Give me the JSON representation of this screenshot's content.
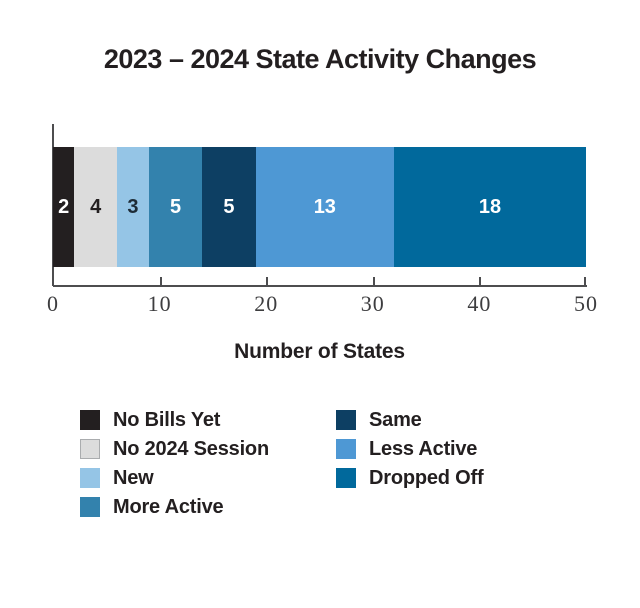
{
  "chart_data": {
    "type": "bar",
    "orientation": "horizontal",
    "stacked": true,
    "title": "2023 – 2024 State Activity Changes",
    "xlabel": "Number of States",
    "xlim": [
      0,
      50
    ],
    "xticks": [
      0,
      10,
      20,
      30,
      40,
      50
    ],
    "grid": false,
    "legend_position": "bottom",
    "total": 50,
    "segments": [
      {
        "label": "No Bills Yet",
        "value": 2,
        "color": "#231f20",
        "text_color": "#ffffff"
      },
      {
        "label": "No 2024 Session",
        "value": 4,
        "color": "#dcdcdc",
        "text_color": "#231f20"
      },
      {
        "label": "New",
        "value": 3,
        "color": "#95c5e6",
        "text_color": "#1d2b36"
      },
      {
        "label": "More Active",
        "value": 5,
        "color": "#3382ad",
        "text_color": "#ffffff"
      },
      {
        "label": "Same",
        "value": 5,
        "color": "#0d3f63",
        "text_color": "#ffffff"
      },
      {
        "label": "Less Active",
        "value": 13,
        "color": "#4e98d4",
        "text_color": "#ffffff"
      },
      {
        "label": "Dropped Off",
        "value": 18,
        "color": "#01699c",
        "text_color": "#ffffff"
      }
    ],
    "legend_columns": [
      [
        "No Bills Yet",
        "No 2024 Session",
        "New",
        "More Active"
      ],
      [
        "Same",
        "Less Active",
        "Dropped Off"
      ]
    ],
    "axis_color": "#4d4d4f",
    "tick_label_color": "#3d3d3f",
    "title_color": "#231f20"
  }
}
